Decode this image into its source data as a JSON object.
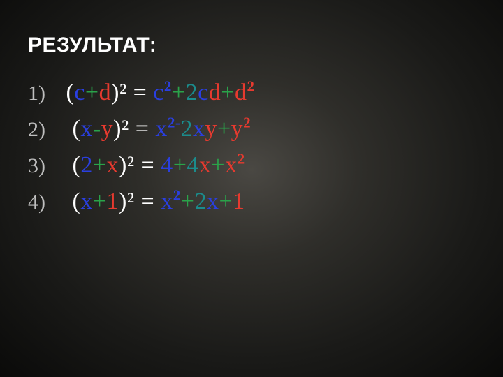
{
  "colors": {
    "bg_center": "#4a4843",
    "bg_outer": "#0a0a09",
    "frame": "#c9a94a",
    "title": "#ffffff",
    "grey": "#bfbfbf",
    "white": "#ffffff",
    "red": "#e63a2f",
    "green": "#2aa34a",
    "blue": "#2a3fe0",
    "teal": "#1b8c8c"
  },
  "typography": {
    "title_family": "Arial",
    "title_weight": "bold",
    "title_size_pt": 30,
    "body_family": "Times New Roman",
    "body_size_pt": 34,
    "number_size_pt": 30
  },
  "title": "РЕЗУЛЬТАТ:",
  "rows": [
    {
      "n": "1)",
      "lhs": {
        "open": "(",
        "a": "c",
        "op": "+",
        "b": "d",
        "close": ")",
        "sq": "²"
      },
      "eq": " = ",
      "rhs": {
        "a": "c",
        "a_sup": "2",
        "plus1": "+",
        "two": "2",
        "a2": "c",
        "b2": "d",
        "plus2": "+",
        "b": "d",
        "b_sup": "2"
      },
      "style": {
        "a_color": "blue",
        "b_color": "red",
        "op_color": "green",
        "two_color": "teal",
        "rhs_op_color": "green"
      }
    },
    {
      "n": "2)",
      "lhs": {
        "open": "(",
        "a": "x",
        "op": "-",
        "b": "y",
        "close": ")",
        "sq": "²"
      },
      "eq": " = ",
      "rhs": {
        "a": "x",
        "a_sup": "2-",
        "two": "2",
        "a2": "x",
        "b2": "y",
        "plus2": "+",
        "b": "y",
        "b_sup": "2"
      },
      "style": {
        "a_color": "blue",
        "b_color": "red",
        "op_color": "green",
        "two_color": "teal",
        "rhs_op_color": "green"
      }
    },
    {
      "n": "3)",
      "lhs": {
        "open": "(",
        "a": "2",
        "op": "+",
        "b": "x",
        "close": ")",
        "sq": "²"
      },
      "eq": " = ",
      "rhs": {
        "a": "4",
        "plus1": "+",
        "two": "4",
        "b2": "x",
        "plus2": "+",
        "b": "x",
        "b_sup": "2"
      },
      "style": {
        "a_color": "blue",
        "b_color": "red",
        "op_color": "green",
        "two_color": "teal",
        "rhs_op_color": "green"
      }
    },
    {
      "n": "4)",
      "lhs": {
        "open": "(",
        "a": "x",
        "op": "+",
        "b": "1",
        "close": ")",
        "sq": "²"
      },
      "eq": " = ",
      "rhs": {
        "a": "x",
        "a_sup": "2",
        "plus1": "+",
        "two": "2",
        "a2": "x",
        "plus2": "+",
        "b": "1"
      },
      "style": {
        "a_color": "blue",
        "b_color": "red",
        "op_color": "green",
        "two_color": "teal",
        "rhs_op_color": "green"
      }
    }
  ]
}
